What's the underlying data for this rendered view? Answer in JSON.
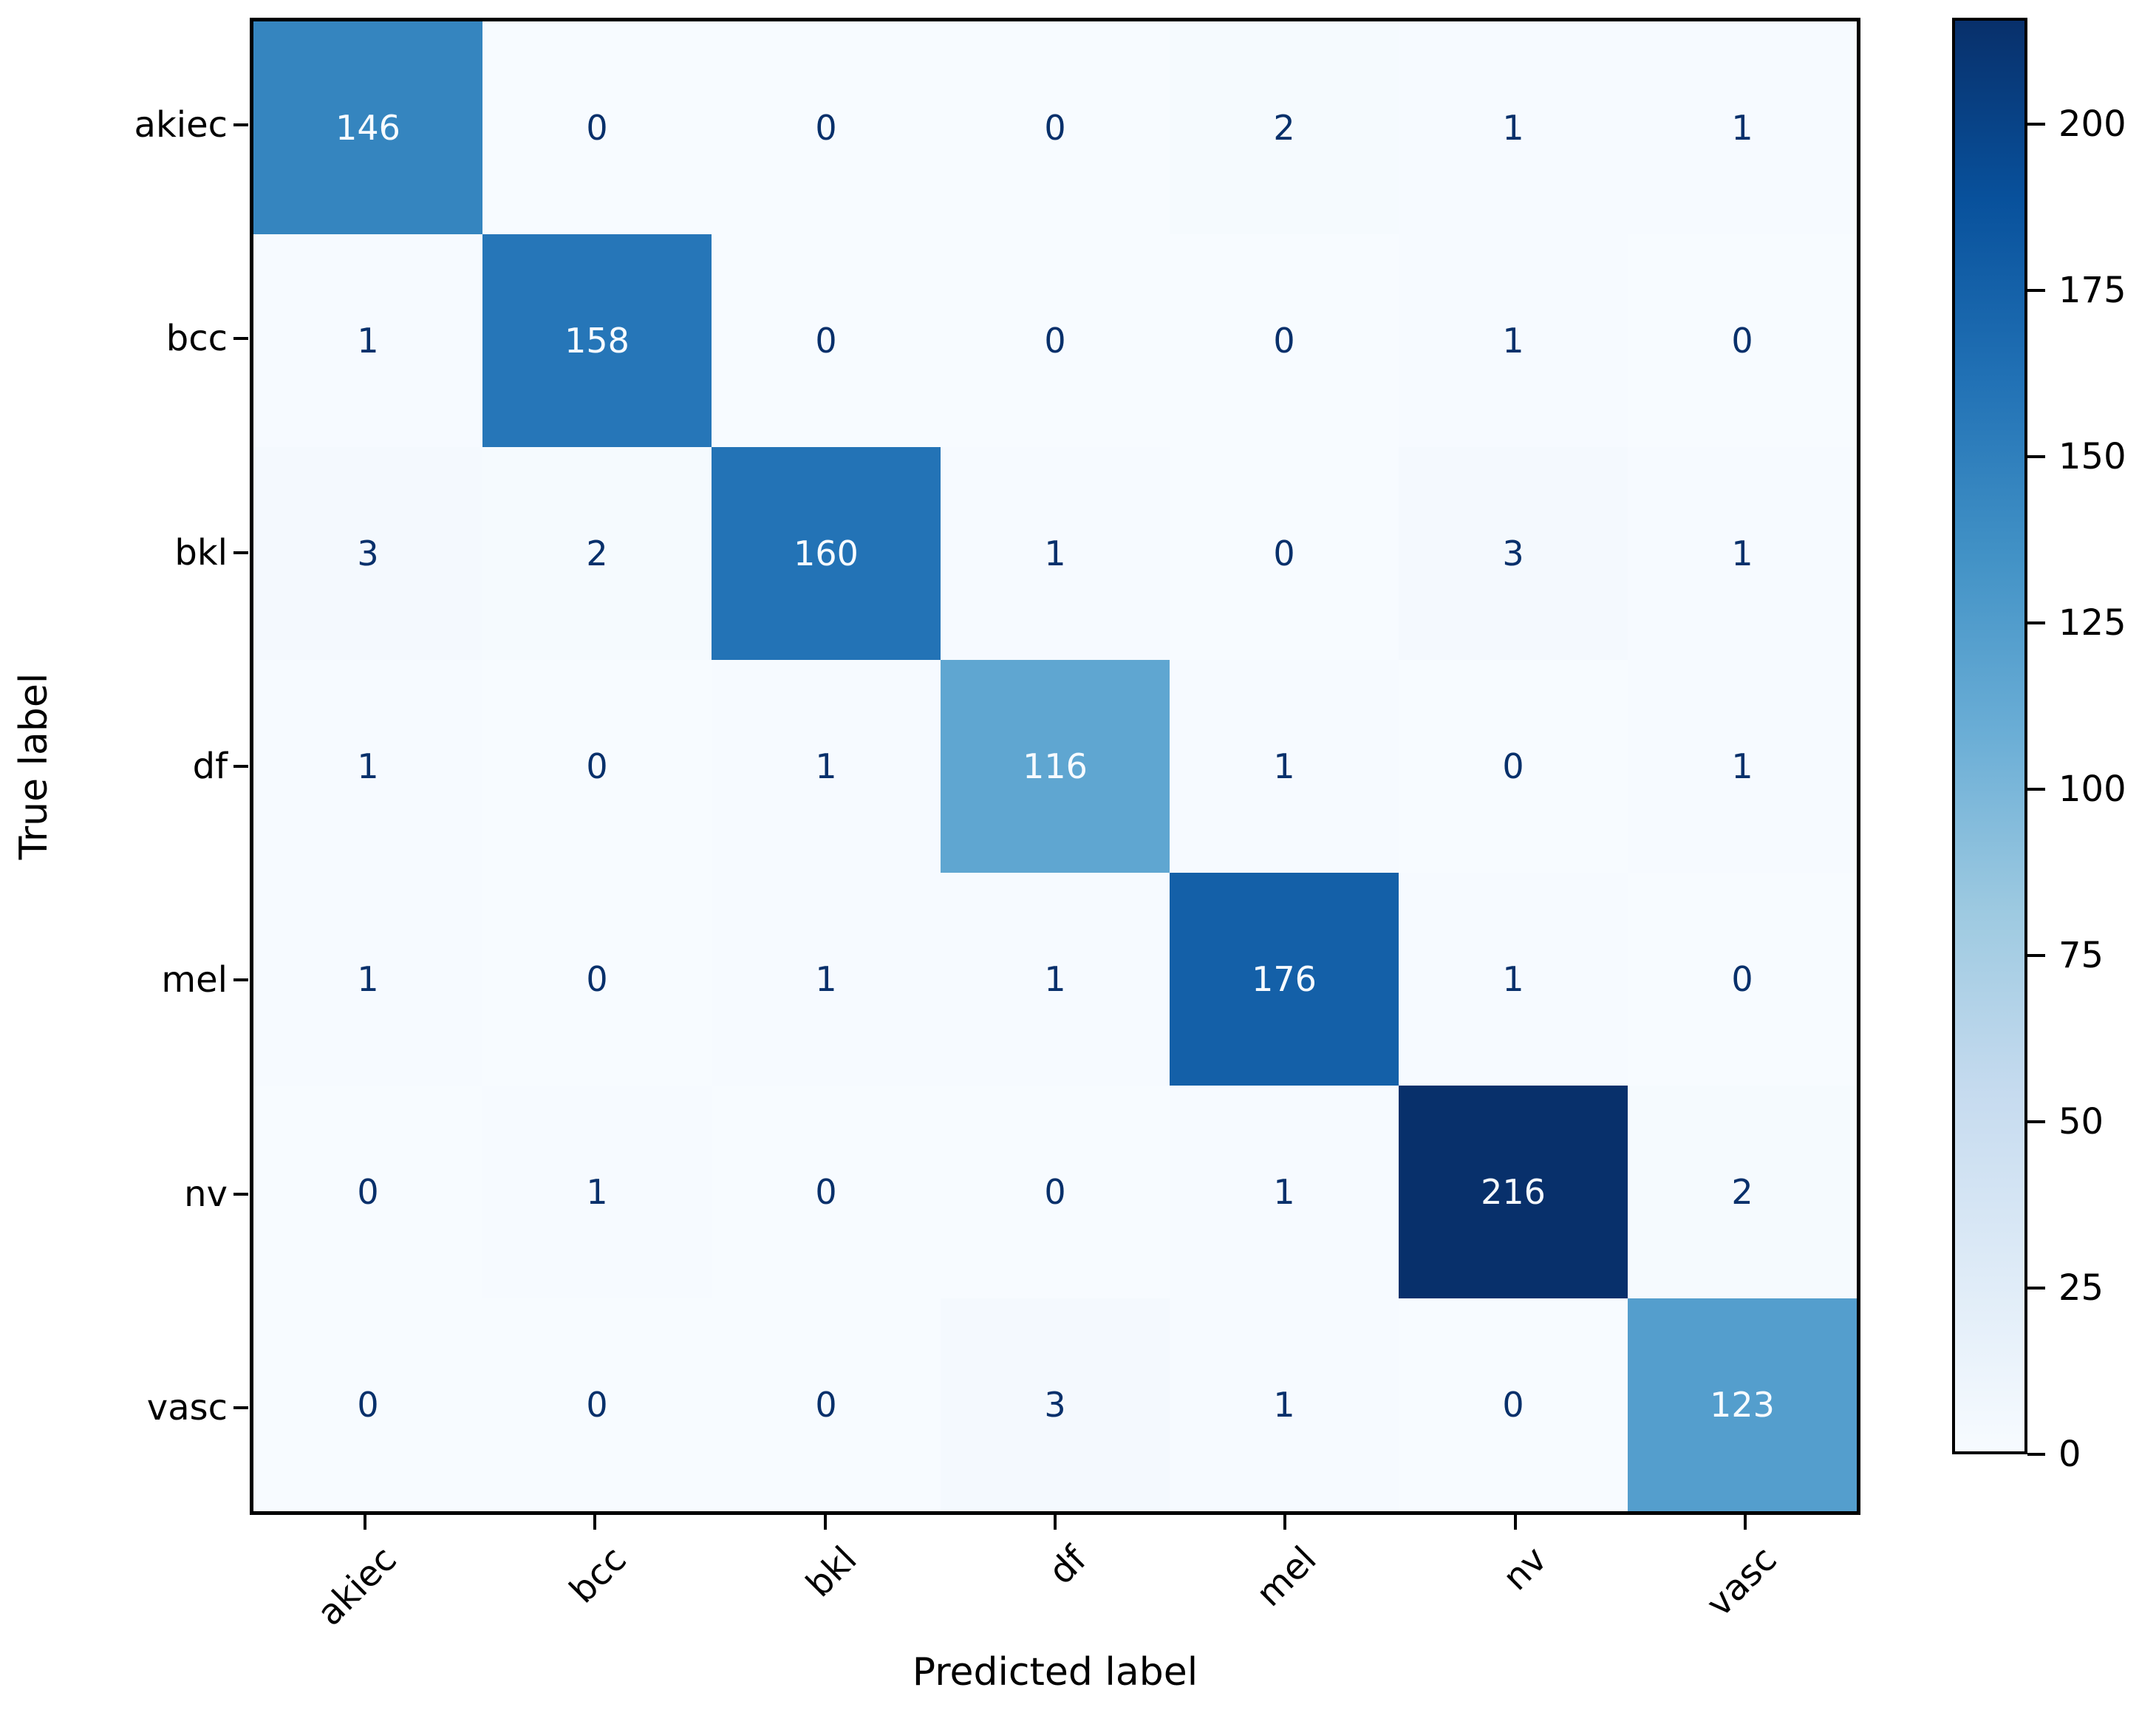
{
  "chart_data": {
    "type": "heatmap",
    "title": "",
    "xlabel": "Predicted label",
    "ylabel": "True label",
    "categories": [
      "akiec",
      "bcc",
      "bkl",
      "df",
      "mel",
      "nv",
      "vasc"
    ],
    "matrix": [
      [
        146,
        0,
        0,
        0,
        2,
        1,
        1
      ],
      [
        1,
        158,
        0,
        0,
        0,
        1,
        0
      ],
      [
        3,
        2,
        160,
        1,
        0,
        3,
        1
      ],
      [
        1,
        0,
        1,
        116,
        1,
        0,
        1
      ],
      [
        1,
        0,
        1,
        1,
        176,
        1,
        0
      ],
      [
        0,
        1,
        0,
        0,
        1,
        216,
        2
      ],
      [
        0,
        0,
        0,
        3,
        1,
        0,
        123
      ]
    ],
    "vmin": 0,
    "vmax": 216,
    "colormap_name": "Blues",
    "colormap_stops": [
      "#f7fbff",
      "#deebf7",
      "#c6dbef",
      "#9ecae1",
      "#6baed6",
      "#4292c6",
      "#2171b5",
      "#08519c",
      "#08306b"
    ],
    "colorbar_ticks": [
      0,
      25,
      50,
      75,
      100,
      125,
      150,
      175,
      200
    ],
    "cell_text_dark": "#08306b",
    "cell_text_light": "#f7fbff",
    "axis_color": "#000000",
    "legend_position": "right-colorbar",
    "grid": false
  }
}
